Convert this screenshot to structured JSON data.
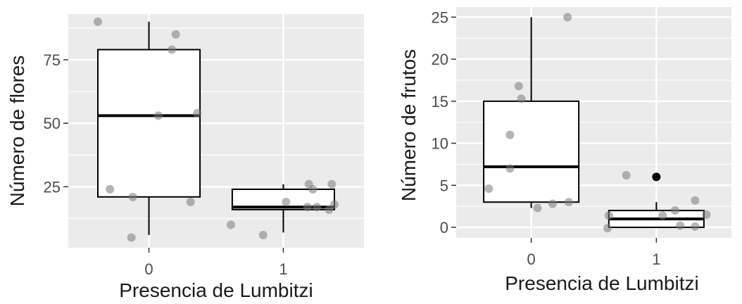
{
  "chart_data": [
    {
      "type": "boxplot",
      "title": "",
      "xlabel": "Presencia de Lumbitzi",
      "ylabel": "Número de flores",
      "categories": [
        "0",
        "1"
      ],
      "y_ticks": [
        25,
        50,
        75
      ],
      "ylim": [
        1,
        93
      ],
      "boxes": [
        {
          "category": "0",
          "whisker_low": 6,
          "q1": 21,
          "median": 53,
          "q3": 79,
          "whisker_high": 90
        },
        {
          "category": "1",
          "whisker_low": 7,
          "q1": 16,
          "median": 17,
          "q3": 24,
          "whisker_high": 26
        }
      ],
      "points": [
        {
          "x": -0.38,
          "y": 90
        },
        {
          "x": 0.2,
          "y": 85
        },
        {
          "x": 0.17,
          "y": 79
        },
        {
          "x": 0.36,
          "y": 54
        },
        {
          "x": 0.07,
          "y": 53
        },
        {
          "x": -0.29,
          "y": 24
        },
        {
          "x": -0.12,
          "y": 21
        },
        {
          "x": 0.31,
          "y": 19
        },
        {
          "x": -0.13,
          "y": 5
        },
        {
          "x": 0.61,
          "y": 10
        },
        {
          "x": 0.85,
          "y": 6
        },
        {
          "x": 1.02,
          "y": 19
        },
        {
          "x": 1.19,
          "y": 26
        },
        {
          "x": 1.22,
          "y": 24
        },
        {
          "x": 1.36,
          "y": 26
        },
        {
          "x": 1.18,
          "y": 17
        },
        {
          "x": 1.25,
          "y": 17
        },
        {
          "x": 1.34,
          "y": 16
        },
        {
          "x": 1.38,
          "y": 18
        }
      ],
      "outliers": [],
      "grid": true
    },
    {
      "type": "boxplot",
      "title": "",
      "xlabel": "Presencia de Lumbitzi",
      "ylabel": "Número de frutos",
      "categories": [
        "0",
        "1"
      ],
      "y_ticks": [
        0,
        5,
        10,
        15,
        20,
        25
      ],
      "ylim": [
        -1.25,
        26.2
      ],
      "boxes": [
        {
          "category": "0",
          "whisker_low": 2.3,
          "q1": 3,
          "median": 7.2,
          "q3": 15,
          "whisker_high": 25
        },
        {
          "category": "1",
          "whisker_low": 0,
          "q1": 0,
          "median": 1,
          "q3": 2,
          "whisker_high": 3
        }
      ],
      "points": [
        {
          "x": 0.29,
          "y": 25
        },
        {
          "x": -0.1,
          "y": 16.8
        },
        {
          "x": -0.08,
          "y": 15.3
        },
        {
          "x": -0.17,
          "y": 11
        },
        {
          "x": -0.17,
          "y": 7
        },
        {
          "x": -0.34,
          "y": 4.6
        },
        {
          "x": 0.17,
          "y": 2.8
        },
        {
          "x": 0.3,
          "y": 3
        },
        {
          "x": 0.05,
          "y": 2.3
        },
        {
          "x": 0.76,
          "y": 6.2
        },
        {
          "x": 0.62,
          "y": 1.4
        },
        {
          "x": 0.61,
          "y": -0.1
        },
        {
          "x": 1.05,
          "y": 1.4
        },
        {
          "x": 1.15,
          "y": 2.0
        },
        {
          "x": 1.31,
          "y": 3.2
        },
        {
          "x": 1.4,
          "y": 1.5
        },
        {
          "x": 1.19,
          "y": 0.2
        },
        {
          "x": 1.31,
          "y": 0.1
        }
      ],
      "outliers": [
        {
          "x": 1,
          "y": 6
        }
      ],
      "grid": true
    }
  ]
}
